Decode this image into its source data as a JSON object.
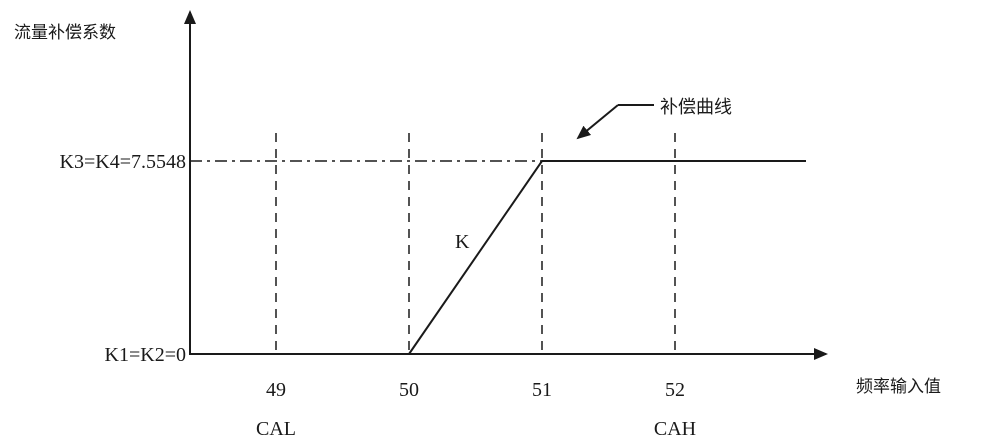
{
  "chart_data": {
    "type": "line",
    "xlabel": "频率输入值",
    "ylabel": "流量补偿系数",
    "x_ticks": [
      49,
      50,
      51,
      52
    ],
    "x_tick_labels": [
      "49",
      "50",
      "51",
      "52"
    ],
    "y_ticks": [
      0,
      7.5548
    ],
    "y_tick_labels": [
      "K1=K2=0",
      "K3=K4=7.5548"
    ],
    "xlim": [
      48.05,
      53.2
    ],
    "ylim": [
      0,
      7.5548
    ],
    "category_labels": [
      {
        "x": 49,
        "text": "CAL"
      },
      {
        "x": 52,
        "text": "CAH"
      }
    ],
    "series": [
      {
        "name": "补偿曲线",
        "points": [
          [
            50,
            0
          ],
          [
            51,
            7.5548
          ],
          [
            53,
            7.5548
          ]
        ]
      }
    ],
    "annotations": {
      "curve_label": "补偿曲线",
      "slope_label": "K"
    },
    "reference_lines": {
      "vertical": [
        49,
        50,
        51,
        52
      ],
      "horizontal": [
        7.5548
      ]
    },
    "grid": false,
    "legend": "none"
  },
  "colors": {
    "ink": "#1a1a1a",
    "background": "#ffffff"
  }
}
